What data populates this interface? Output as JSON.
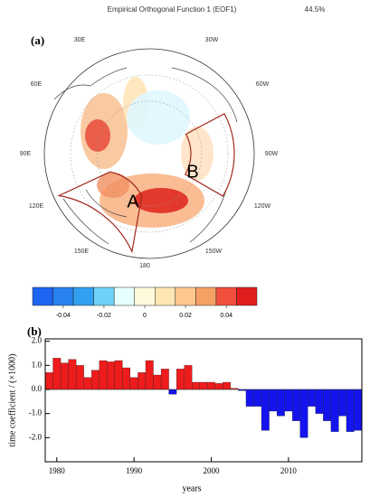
{
  "map": {
    "title": "Empirical Orthogonal Function 1 (EOF1)",
    "variance": "44.5%",
    "panel": "(a)",
    "longitudes": [
      "30E",
      "30W",
      "60E",
      "60W",
      "90E",
      "90W",
      "120E",
      "120W",
      "150E",
      "150W",
      "180"
    ],
    "regions": [
      "A",
      "B"
    ]
  },
  "colorbar": {
    "colors": [
      "#1e64f0",
      "#2882f0",
      "#32a0f0",
      "#6ed2f8",
      "#e6ffff",
      "#fffadc",
      "#ffe6b4",
      "#ffc88c",
      "#f5a064",
      "#f0503c",
      "#e01e1e"
    ],
    "clim": [
      -0.055,
      0.055
    ],
    "ticks": [
      {
        "value": -0.04,
        "label": "-0.04"
      },
      {
        "value": -0.02,
        "label": "-0.02"
      },
      0,
      {
        "value": 0.02,
        "label": "0.02"
      },
      {
        "value": 0.04,
        "label": "0.04"
      }
    ]
  },
  "chart_data": {
    "type": "bar",
    "panel": "(b)",
    "y_label": "time coefficient / (×1000)",
    "x_label": "years",
    "x": [
      1979,
      1980,
      1981,
      1982,
      1983,
      1984,
      1985,
      1986,
      1987,
      1988,
      1989,
      1990,
      1991,
      1992,
      1993,
      1994,
      1995,
      1996,
      1997,
      1998,
      1999,
      2000,
      2001,
      2002,
      2003,
      2004,
      2005,
      2006,
      2007,
      2008,
      2009,
      2010,
      2011,
      2012,
      2013,
      2014,
      2015,
      2016,
      2017,
      2018,
      2019
    ],
    "values": [
      0.7,
      1.3,
      1.1,
      1.25,
      1.0,
      0.5,
      0.8,
      1.2,
      1.15,
      1.2,
      0.9,
      0.5,
      0.7,
      1.2,
      0.6,
      0.85,
      -0.2,
      0.85,
      1.0,
      0.3,
      0.3,
      0.3,
      0.25,
      0.3,
      0.05,
      -0.05,
      -0.7,
      -0.7,
      -1.7,
      -0.9,
      -1.1,
      -0.9,
      -1.3,
      -2.0,
      -0.7,
      -1.0,
      -1.3,
      -1.75,
      -1.1,
      -1.75,
      -1.7
    ],
    "positive_color": "#ee1c1c",
    "negative_color": "#1414ee",
    "xlim": [
      1978.5,
      2019.5
    ],
    "xticks": [
      1980,
      1990,
      2000,
      2010
    ],
    "ylim": [
      -3.0,
      2.1
    ],
    "yticks": [
      {
        "value": 2.0,
        "label": "2.0"
      },
      {
        "value": 1.0,
        "label": "1.0"
      },
      {
        "value": 0.0,
        "label": "0.0"
      },
      {
        "value": -1.0,
        "label": "-1.0"
      },
      {
        "value": -2.0,
        "label": "-2.0"
      }
    ]
  }
}
